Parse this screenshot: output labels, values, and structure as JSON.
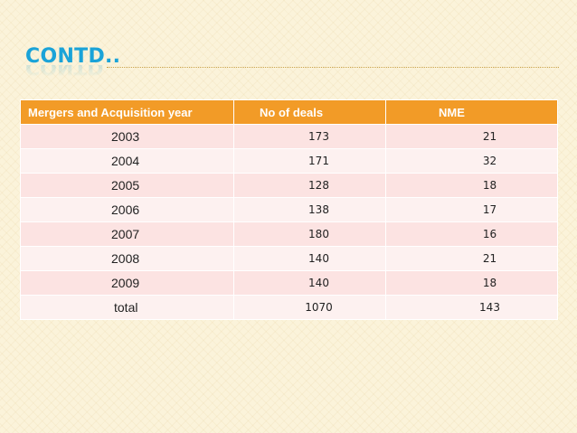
{
  "slide": {
    "title": "CONTD.."
  },
  "table": {
    "headers": [
      "Mergers and Acquisition year",
      "No of deals",
      "NME"
    ],
    "rows": [
      [
        "2003",
        "173",
        "21"
      ],
      [
        "2004",
        "171",
        "32"
      ],
      [
        "2005",
        "128",
        "18"
      ],
      [
        "2006",
        "138",
        "17"
      ],
      [
        "2007",
        "180",
        "16"
      ],
      [
        "2008",
        "140",
        "21"
      ],
      [
        "2009",
        "140",
        "18"
      ],
      [
        "total",
        "1070",
        "143"
      ]
    ]
  },
  "colors": {
    "title": "#1aa3d8",
    "header_bg": "#f29b27",
    "row_odd": "#fce3e2",
    "row_even": "#fdf1f0",
    "background": "#fbf3da"
  }
}
